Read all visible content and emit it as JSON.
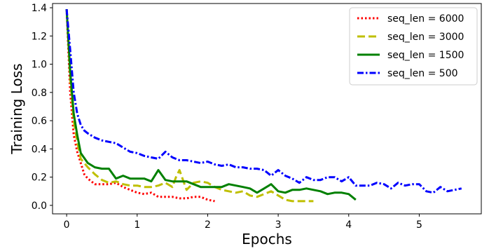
{
  "chart_data": {
    "type": "line",
    "title": "",
    "xlabel": "Epochs",
    "ylabel": "Training Loss",
    "xlim": [
      -0.2,
      5.88
    ],
    "ylim": [
      -0.06,
      1.43
    ],
    "xticks": [
      "0",
      "1",
      "2",
      "3",
      "4",
      "5"
    ],
    "yticks": [
      "0.0",
      "0.2",
      "0.4",
      "0.6",
      "0.8",
      "1.0",
      "1.2",
      "1.4"
    ],
    "grid": false,
    "legend_position": "top-right",
    "series": [
      {
        "name": "seq_len = 6000",
        "color": "#ff0000",
        "style": "dotted",
        "x": [
          0.0,
          0.05,
          0.1,
          0.15,
          0.2,
          0.25,
          0.3,
          0.4,
          0.5,
          0.6,
          0.7,
          0.8,
          0.9,
          1.0,
          1.1,
          1.2,
          1.3,
          1.4,
          1.5,
          1.6,
          1.7,
          1.8,
          1.9,
          2.0,
          2.1
        ],
        "y": [
          1.39,
          0.8,
          0.5,
          0.38,
          0.3,
          0.22,
          0.19,
          0.15,
          0.15,
          0.15,
          0.16,
          0.13,
          0.11,
          0.09,
          0.08,
          0.09,
          0.06,
          0.06,
          0.06,
          0.05,
          0.05,
          0.06,
          0.06,
          0.04,
          0.03
        ]
      },
      {
        "name": "seq_len = 3000",
        "color": "#bfbf00",
        "style": "dashed",
        "x": [
          0.0,
          0.05,
          0.1,
          0.15,
          0.2,
          0.3,
          0.4,
          0.5,
          0.6,
          0.7,
          0.8,
          0.9,
          1.0,
          1.1,
          1.2,
          1.3,
          1.4,
          1.5,
          1.55,
          1.6,
          1.65,
          1.7,
          1.8,
          1.9,
          2.0,
          2.1,
          2.2,
          2.3,
          2.4,
          2.5,
          2.6,
          2.7,
          2.8,
          2.9,
          3.0,
          3.1,
          3.2,
          3.3,
          3.4,
          3.5
        ],
        "y": [
          1.39,
          0.9,
          0.6,
          0.45,
          0.33,
          0.27,
          0.22,
          0.18,
          0.16,
          0.17,
          0.15,
          0.14,
          0.14,
          0.13,
          0.13,
          0.14,
          0.16,
          0.13,
          0.2,
          0.25,
          0.18,
          0.11,
          0.16,
          0.17,
          0.16,
          0.13,
          0.11,
          0.1,
          0.09,
          0.1,
          0.07,
          0.06,
          0.08,
          0.1,
          0.07,
          0.04,
          0.03,
          0.03,
          0.03,
          0.03
        ]
      },
      {
        "name": "seq_len = 1500",
        "color": "#008000",
        "style": "solid",
        "x": [
          0.0,
          0.05,
          0.1,
          0.15,
          0.2,
          0.3,
          0.4,
          0.5,
          0.6,
          0.7,
          0.8,
          0.9,
          1.0,
          1.1,
          1.2,
          1.3,
          1.4,
          1.5,
          1.6,
          1.7,
          1.8,
          1.9,
          2.0,
          2.1,
          2.2,
          2.3,
          2.4,
          2.5,
          2.6,
          2.7,
          2.8,
          2.9,
          3.0,
          3.1,
          3.2,
          3.3,
          3.4,
          3.5,
          3.6,
          3.7,
          3.8,
          3.9,
          4.0,
          4.1
        ],
        "y": [
          1.39,
          0.95,
          0.65,
          0.5,
          0.37,
          0.3,
          0.27,
          0.26,
          0.26,
          0.19,
          0.21,
          0.19,
          0.19,
          0.19,
          0.17,
          0.25,
          0.18,
          0.17,
          0.17,
          0.17,
          0.15,
          0.13,
          0.13,
          0.13,
          0.13,
          0.15,
          0.14,
          0.13,
          0.12,
          0.09,
          0.12,
          0.15,
          0.1,
          0.09,
          0.11,
          0.11,
          0.12,
          0.11,
          0.1,
          0.08,
          0.09,
          0.09,
          0.08,
          0.04
        ]
      },
      {
        "name": "seq_len = 500",
        "color": "#0000ff",
        "style": "dashdot",
        "x": [
          0.0,
          0.05,
          0.1,
          0.15,
          0.2,
          0.25,
          0.3,
          0.4,
          0.5,
          0.6,
          0.7,
          0.8,
          0.9,
          1.0,
          1.1,
          1.2,
          1.3,
          1.4,
          1.5,
          1.6,
          1.7,
          1.8,
          1.9,
          2.0,
          2.1,
          2.2,
          2.3,
          2.4,
          2.5,
          2.6,
          2.7,
          2.8,
          2.9,
          3.0,
          3.1,
          3.2,
          3.3,
          3.4,
          3.5,
          3.6,
          3.7,
          3.8,
          3.9,
          4.0,
          4.1,
          4.2,
          4.3,
          4.4,
          4.5,
          4.6,
          4.7,
          4.8,
          4.9,
          5.0,
          5.1,
          5.2,
          5.3,
          5.4,
          5.5,
          5.6
        ],
        "y": [
          1.39,
          1.1,
          0.8,
          0.65,
          0.57,
          0.53,
          0.51,
          0.48,
          0.46,
          0.45,
          0.44,
          0.41,
          0.38,
          0.37,
          0.35,
          0.34,
          0.33,
          0.38,
          0.34,
          0.32,
          0.32,
          0.31,
          0.3,
          0.31,
          0.29,
          0.28,
          0.29,
          0.27,
          0.27,
          0.26,
          0.26,
          0.25,
          0.21,
          0.25,
          0.21,
          0.19,
          0.16,
          0.2,
          0.18,
          0.18,
          0.2,
          0.2,
          0.17,
          0.2,
          0.14,
          0.14,
          0.14,
          0.16,
          0.15,
          0.12,
          0.16,
          0.14,
          0.15,
          0.15,
          0.1,
          0.09,
          0.13,
          0.1,
          0.11,
          0.12
        ]
      }
    ]
  }
}
